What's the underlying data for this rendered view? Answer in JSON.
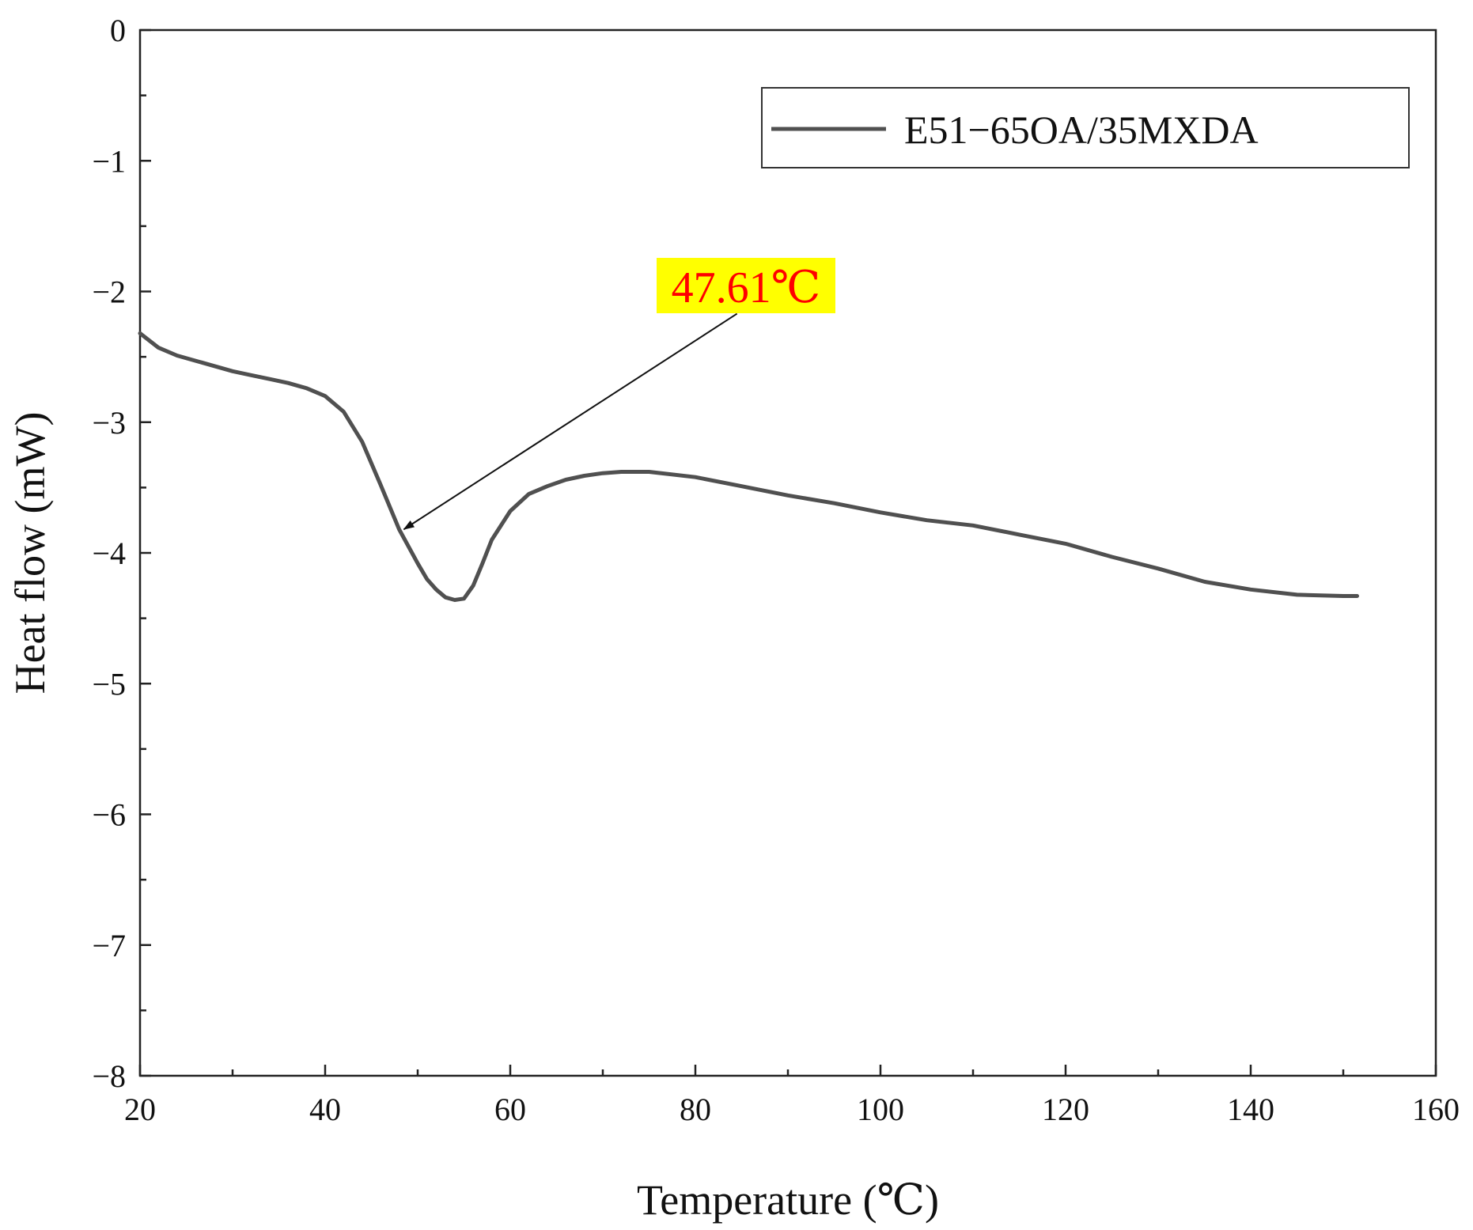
{
  "chart_data": {
    "type": "line",
    "title": "",
    "xlabel": "Temperature (℃)",
    "ylabel": "Heat flow (mW)",
    "xlim": [
      20,
      160
    ],
    "ylim": [
      -8,
      0
    ],
    "x_ticks": [
      "20",
      "40",
      "60",
      "80",
      "100",
      "120",
      "140",
      "160"
    ],
    "y_ticks": [
      "0",
      "−1",
      "−2",
      "−3",
      "−4",
      "−5",
      "−6",
      "−7",
      "−8"
    ],
    "grid": false,
    "legend_position": "top-right",
    "series": [
      {
        "name": "E51−65OA/35MXDA",
        "color": "#505050",
        "x": [
          20,
          22,
          24,
          26,
          28,
          30,
          32,
          34,
          36,
          38,
          40,
          42,
          44,
          46,
          48,
          50,
          51,
          52,
          53,
          54,
          55,
          56,
          57,
          58,
          60,
          62,
          64,
          66,
          68,
          70,
          72,
          75,
          80,
          85,
          90,
          95,
          100,
          105,
          110,
          115,
          120,
          125,
          130,
          135,
          140,
          145,
          150,
          151.5
        ],
        "y": [
          -2.32,
          -2.43,
          -2.49,
          -2.53,
          -2.57,
          -2.61,
          -2.64,
          -2.67,
          -2.7,
          -2.74,
          -2.8,
          -2.92,
          -3.15,
          -3.48,
          -3.82,
          -4.08,
          -4.2,
          -4.28,
          -4.34,
          -4.36,
          -4.35,
          -4.25,
          -4.08,
          -3.9,
          -3.68,
          -3.55,
          -3.49,
          -3.44,
          -3.41,
          -3.39,
          -3.38,
          -3.38,
          -3.42,
          -3.49,
          -3.56,
          -3.62,
          -3.69,
          -3.75,
          -3.79,
          -3.86,
          -3.93,
          -4.03,
          -4.12,
          -4.22,
          -4.28,
          -4.32,
          -4.33,
          -4.33
        ]
      }
    ],
    "annotations": [
      {
        "text": "47.61℃",
        "text_color": "#ff0000",
        "background": "#ffff00",
        "arrow_to": [
          48.5,
          -3.82
        ],
        "arrow_from": [
          84.5,
          -2.17
        ]
      }
    ]
  }
}
